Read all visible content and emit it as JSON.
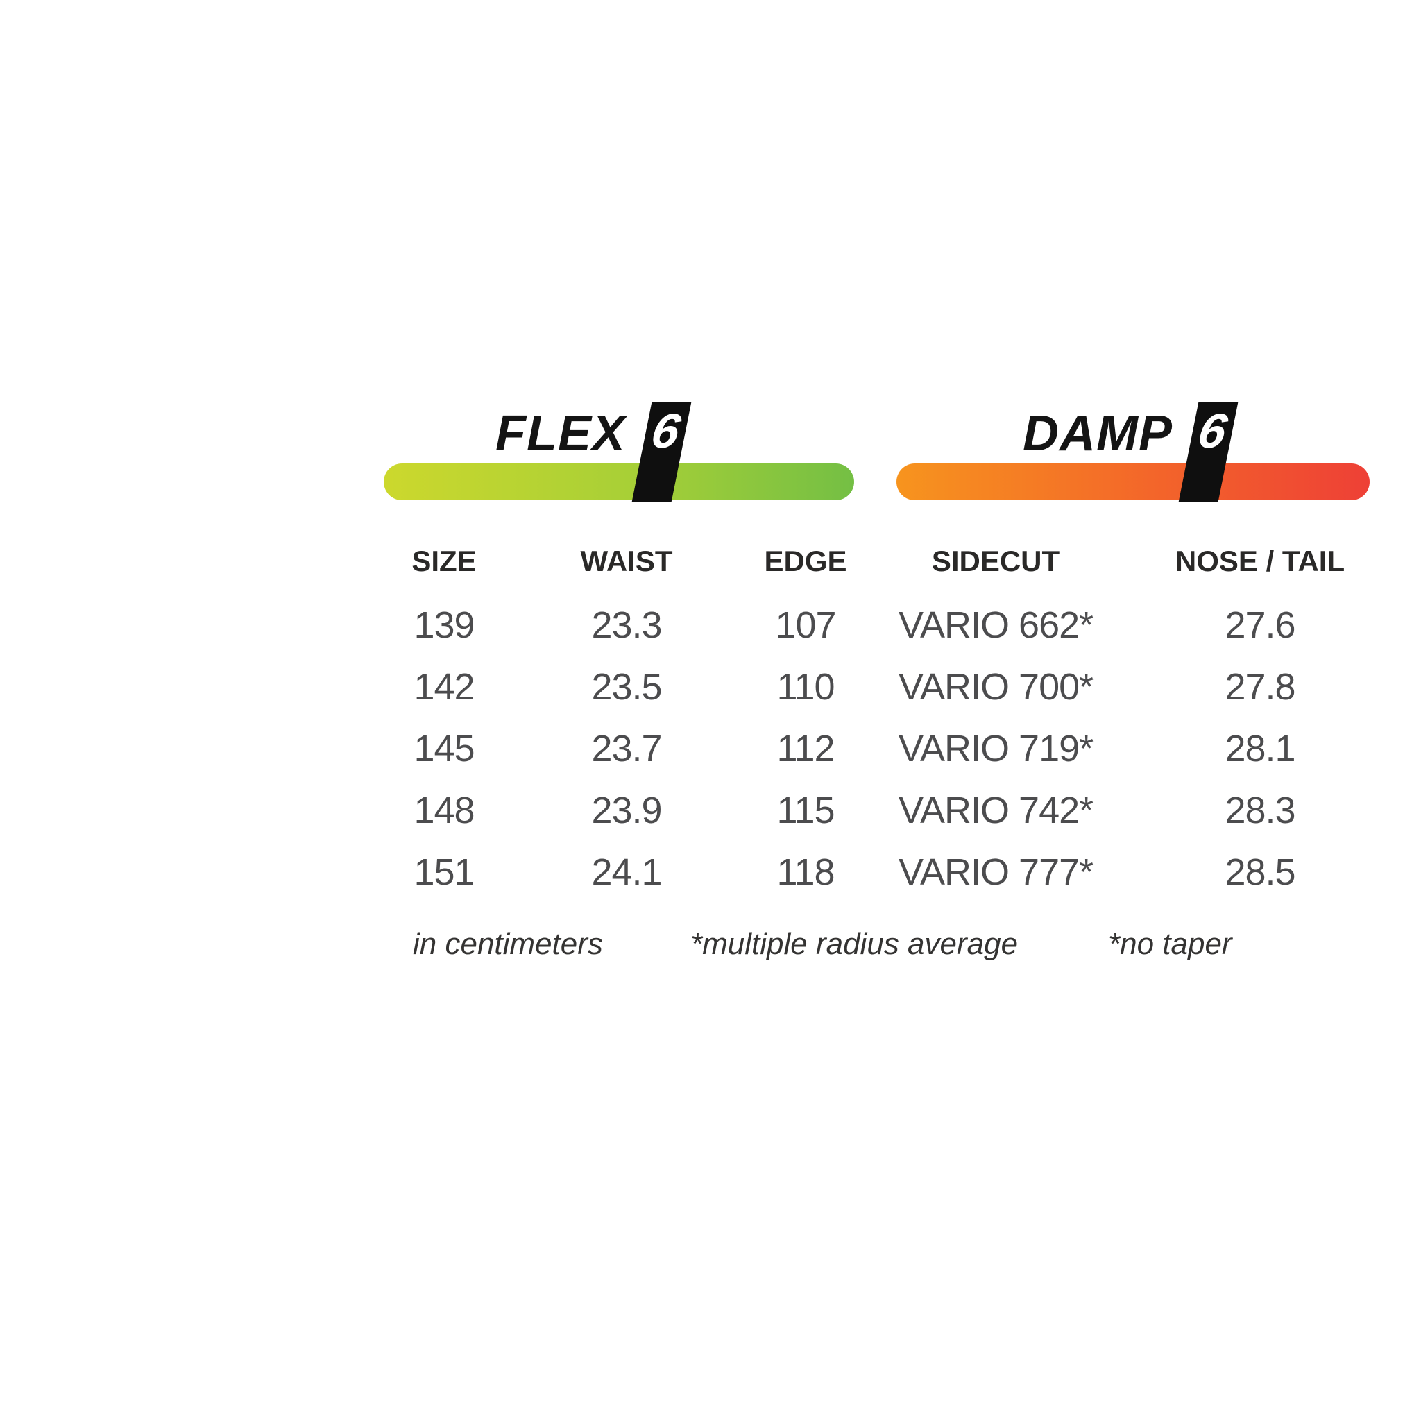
{
  "meters": {
    "flex": {
      "label": "FLEX",
      "value": "6",
      "gradient_start": "#ccd82d",
      "gradient_mid": "#a6cf37",
      "gradient_end": "#74bf44",
      "marker_color": "#0f0f0f"
    },
    "damp": {
      "label": "DAMP",
      "value": "6",
      "gradient_start": "#f7941e",
      "gradient_mid": "#f3652a",
      "gradient_end": "#ee4036",
      "marker_color": "#0f0f0f"
    }
  },
  "table": {
    "headers": [
      "SIZE",
      "WAIST",
      "EDGE",
      "SIDECUT",
      "NOSE / TAIL"
    ],
    "rows": [
      [
        "139",
        "23.3",
        "107",
        "VARIO 662*",
        "27.6"
      ],
      [
        "142",
        "23.5",
        "110",
        "VARIO 700*",
        "27.8"
      ],
      [
        "145",
        "23.7",
        "112",
        "VARIO 719*",
        "28.1"
      ],
      [
        "148",
        "23.9",
        "115",
        "VARIO 742*",
        "28.3"
      ],
      [
        "151",
        "24.1",
        "118",
        "VARIO 777*",
        "28.5"
      ]
    ],
    "units_note": "in centimeters"
  },
  "footnotes": [
    "in centimeters",
    "*multiple radius average",
    "*no taper"
  ]
}
